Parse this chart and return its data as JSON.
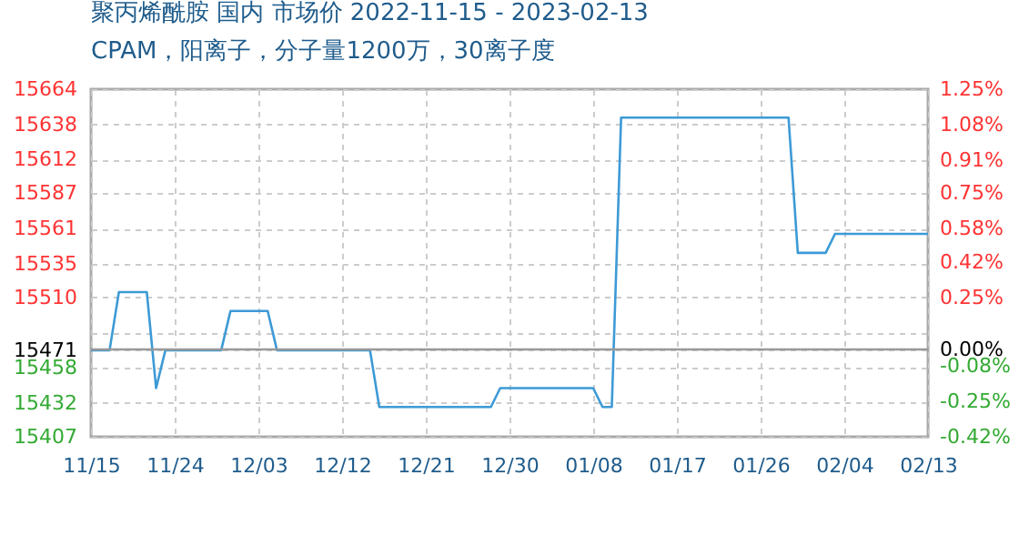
{
  "chart_data": {
    "type": "line",
    "title": "聚丙烯酰胺 国内 市场价 2022-11-15 - 2023-02-13",
    "subtitle": "CPAM，阳离子，分子量1200万，30离子度",
    "x": [
      "2022-11-15",
      "2022-11-17",
      "2022-11-18",
      "2022-11-21",
      "2022-11-22",
      "2022-11-23",
      "2022-11-29",
      "2022-11-30",
      "2022-12-04",
      "2022-12-05",
      "2022-12-15",
      "2022-12-16",
      "2022-12-28",
      "2022-12-29",
      "2023-01-08",
      "2023-01-09",
      "2023-01-10",
      "2023-01-11",
      "2023-01-29",
      "2023-01-30",
      "2023-02-02",
      "2023-02-03",
      "2023-02-13"
    ],
    "series": [
      {
        "color": "#3d9ad6",
        "values": [
          15471,
          15471,
          15514,
          15514,
          15443,
          15471,
          15471,
          15500,
          15500,
          15471,
          15471,
          15429,
          15429,
          15443,
          15443,
          15429,
          15429,
          15643,
          15643,
          15543,
          15543,
          15557,
          15557
        ]
      }
    ],
    "xlim": [
      "2022-11-15",
      "2023-02-13"
    ],
    "xticks": [
      {
        "value": "2022-11-15",
        "label": "11/15"
      },
      {
        "value": "2022-11-24",
        "label": "11/24"
      },
      {
        "value": "2022-12-03",
        "label": "12/03"
      },
      {
        "value": "2022-12-12",
        "label": "12/12"
      },
      {
        "value": "2022-12-21",
        "label": "12/21"
      },
      {
        "value": "2022-12-30",
        "label": "12/30"
      },
      {
        "value": "2023-01-08",
        "label": "01/08"
      },
      {
        "value": "2023-01-17",
        "label": "01/17"
      },
      {
        "value": "2023-01-26",
        "label": "01/26"
      },
      {
        "value": "2023-02-04",
        "label": "02/04"
      },
      {
        "value": "2023-02-13",
        "label": "02/13"
      }
    ],
    "ylim": [
      15407,
      15664
    ],
    "yticks": [
      15407,
      15432,
      15458,
      15471,
      {
        "value": 15484,
        "label": null
      },
      15510,
      15535,
      15561,
      15587,
      15612,
      15638,
      15664
    ],
    "y2lim": [
      -0.42,
      1.25
    ],
    "y2ticks": [
      {
        "value": -0.42,
        "label": "-0.42%"
      },
      {
        "value": -0.25,
        "label": "-0.25%"
      },
      {
        "value": -0.08,
        "label": "-0.08%"
      },
      {
        "value": 0,
        "label": "0.00%"
      },
      {
        "value": 0.25,
        "label": "0.25%"
      },
      {
        "value": 0.42,
        "label": "0.42%"
      },
      {
        "value": 0.58,
        "label": "0.58%"
      },
      {
        "value": 0.75,
        "label": "0.75%"
      },
      {
        "value": 0.91,
        "label": "0.91%"
      },
      {
        "value": 1.08,
        "label": "1.08%"
      },
      {
        "value": 1.25,
        "label": "1.25%"
      }
    ],
    "ref_lines": [
      {
        "axis": "y2",
        "value": 0,
        "color": "#999999"
      }
    ],
    "grid": true
  }
}
